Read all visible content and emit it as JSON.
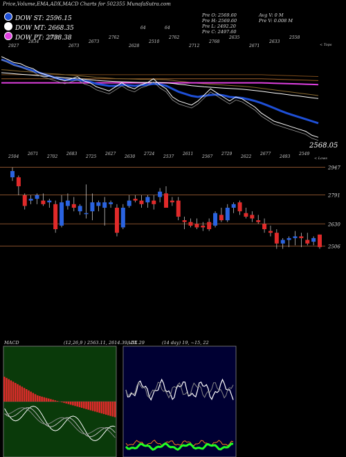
{
  "header": "Price,Volume,EMA,ADX,MACD Charts for 502355 MunafaSutra.com",
  "legend": [
    {
      "label": "DOW ST: 2596.15",
      "color": "#1e4fd6"
    },
    {
      "label": "DOW MT: 2668.35",
      "color": "#ffffff"
    },
    {
      "label": "DOW PT: 2738.38",
      "color": "#e040e0"
    }
  ],
  "stats": {
    "open": "Pre   O: 2569.60",
    "high": "Pre   H: 2569.60",
    "low": "Pre   L: 2492.20",
    "close": "Pre   C: 2497.60",
    "avgv": "Avg V: 0   M",
    "prev": "Pre   V: 0.008 M"
  },
  "labels": {
    "tops": "< Tops",
    "lows": "< Lows",
    "last_close": "2568.05",
    "num_a": "64",
    "num_b": "64"
  },
  "top_labels": [
    "2927",
    "2834",
    "2788",
    "2673",
    "2673",
    "2762",
    "2628",
    "2510",
    "2762",
    "2712",
    "2768",
    "2635",
    "2671",
    "2633",
    "2558"
  ],
  "bottom_labels": [
    "2504",
    "2671",
    "2702",
    "2683",
    "2725",
    "2627",
    "2630",
    "2724",
    "2537",
    "2611",
    "2567",
    "2729",
    "2622",
    "2677",
    "2493",
    "2549"
  ],
  "macd": {
    "title": "MACD",
    "params": "(12,26,9 ) 2563.11,  2614.39,  -51.29"
  },
  "adx": {
    "title": "ADX",
    "params": "(14  day) 19,  ~15,  22"
  },
  "chart_data": {
    "type": "candlestick",
    "price_axis_ticks": [
      2947,
      2791,
      2630,
      2506
    ],
    "candles": [
      {
        "o": 2890,
        "h": 2945,
        "l": 2870,
        "c": 2925
      },
      {
        "o": 2890,
        "h": 2900,
        "l": 2790,
        "c": 2840
      },
      {
        "o": 2790,
        "h": 2800,
        "l": 2710,
        "c": 2730
      },
      {
        "o": 2760,
        "h": 2790,
        "l": 2740,
        "c": 2770
      },
      {
        "o": 2770,
        "h": 2800,
        "l": 2740,
        "c": 2790
      },
      {
        "o": 2760,
        "h": 2800,
        "l": 2730,
        "c": 2740
      },
      {
        "o": 2750,
        "h": 2770,
        "l": 2720,
        "c": 2760
      },
      {
        "o": 2740,
        "h": 2760,
        "l": 2580,
        "c": 2600
      },
      {
        "o": 2620,
        "h": 2790,
        "l": 2610,
        "c": 2750
      },
      {
        "o": 2730,
        "h": 2800,
        "l": 2710,
        "c": 2760
      },
      {
        "o": 2740,
        "h": 2780,
        "l": 2700,
        "c": 2720
      },
      {
        "o": 2700,
        "h": 2740,
        "l": 2680,
        "c": 2730
      },
      {
        "o": 2690,
        "h": 2850,
        "l": 2660,
        "c": 2690
      },
      {
        "o": 2700,
        "h": 2800,
        "l": 2650,
        "c": 2750
      },
      {
        "o": 2730,
        "h": 2760,
        "l": 2700,
        "c": 2750
      },
      {
        "o": 2720,
        "h": 2780,
        "l": 2620,
        "c": 2750
      },
      {
        "o": 2740,
        "h": 2760,
        "l": 2720,
        "c": 2750
      },
      {
        "o": 2720,
        "h": 2740,
        "l": 2560,
        "c": 2580
      },
      {
        "o": 2610,
        "h": 2740,
        "l": 2600,
        "c": 2720
      },
      {
        "o": 2730,
        "h": 2790,
        "l": 2720,
        "c": 2760
      },
      {
        "o": 2770,
        "h": 2790,
        "l": 2750,
        "c": 2760
      },
      {
        "o": 2760,
        "h": 2790,
        "l": 2720,
        "c": 2740
      },
      {
        "o": 2750,
        "h": 2790,
        "l": 2720,
        "c": 2780
      },
      {
        "o": 2760,
        "h": 2790,
        "l": 2710,
        "c": 2740
      },
      {
        "o": 2780,
        "h": 2830,
        "l": 2750,
        "c": 2810
      },
      {
        "o": 2800,
        "h": 2840,
        "l": 2720,
        "c": 2720
      },
      {
        "o": 2760,
        "h": 2780,
        "l": 2730,
        "c": 2750
      },
      {
        "o": 2760,
        "h": 2780,
        "l": 2650,
        "c": 2670
      },
      {
        "o": 2650,
        "h": 2670,
        "l": 2600,
        "c": 2640
      },
      {
        "o": 2640,
        "h": 2660,
        "l": 2610,
        "c": 2620
      },
      {
        "o": 2630,
        "h": 2660,
        "l": 2600,
        "c": 2610
      },
      {
        "o": 2620,
        "h": 2640,
        "l": 2590,
        "c": 2610
      },
      {
        "o": 2640,
        "h": 2660,
        "l": 2590,
        "c": 2600
      },
      {
        "o": 2620,
        "h": 2700,
        "l": 2610,
        "c": 2690
      },
      {
        "o": 2680,
        "h": 2720,
        "l": 2640,
        "c": 2650
      },
      {
        "o": 2650,
        "h": 2740,
        "l": 2640,
        "c": 2720
      },
      {
        "o": 2720,
        "h": 2750,
        "l": 2690,
        "c": 2740
      },
      {
        "o": 2750,
        "h": 2760,
        "l": 2680,
        "c": 2700
      },
      {
        "o": 2690,
        "h": 2720,
        "l": 2660,
        "c": 2670
      },
      {
        "o": 2680,
        "h": 2700,
        "l": 2640,
        "c": 2660
      },
      {
        "o": 2650,
        "h": 2680,
        "l": 2630,
        "c": 2640
      },
      {
        "o": 2630,
        "h": 2660,
        "l": 2580,
        "c": 2600
      },
      {
        "o": 2590,
        "h": 2620,
        "l": 2560,
        "c": 2580
      },
      {
        "o": 2580,
        "h": 2600,
        "l": 2490,
        "c": 2520
      },
      {
        "o": 2520,
        "h": 2550,
        "l": 2490,
        "c": 2540
      },
      {
        "o": 2540,
        "h": 2560,
        "l": 2500,
        "c": 2550
      },
      {
        "o": 2550,
        "h": 2590,
        "l": 2510,
        "c": 2560
      },
      {
        "o": 2560,
        "h": 2580,
        "l": 2500,
        "c": 2550
      },
      {
        "o": 2540,
        "h": 2580,
        "l": 2510,
        "c": 2520
      },
      {
        "o": 2530,
        "h": 2560,
        "l": 2510,
        "c": 2550
      },
      {
        "o": 2570,
        "h": 2570,
        "l": 2490,
        "c": 2500
      }
    ],
    "price_line": [
      2920,
      2905,
      2890,
      2885,
      2870,
      2860,
      2840,
      2830,
      2820,
      2810,
      2800,
      2810,
      2820,
      2800,
      2790,
      2770,
      2760,
      2750,
      2770,
      2790,
      2770,
      2760,
      2780,
      2790,
      2810,
      2780,
      2760,
      2720,
      2700,
      2690,
      2680,
      2700,
      2730,
      2760,
      2740,
      2720,
      2700,
      2720,
      2710,
      2690,
      2670,
      2640,
      2620,
      2600,
      2590,
      2580,
      2570,
      2560,
      2550,
      2530,
      2520
    ],
    "ema_short": [
      2905,
      2895,
      2880,
      2870,
      2860,
      2850,
      2840,
      2830,
      2820,
      2810,
      2805,
      2805,
      2805,
      2800,
      2795,
      2785,
      2780,
      2775,
      2775,
      2780,
      2778,
      2775,
      2778,
      2780,
      2785,
      2782,
      2775,
      2760,
      2745,
      2735,
      2725,
      2720,
      2725,
      2730,
      2732,
      2728,
      2720,
      2718,
      2715,
      2708,
      2700,
      2690,
      2678,
      2665,
      2652,
      2640,
      2630,
      2620,
      2610,
      2600,
      2590
    ],
    "ema_mid": [
      2840,
      2838,
      2835,
      2832,
      2830,
      2828,
      2825,
      2822,
      2820,
      2818,
      2815,
      2813,
      2810,
      2808,
      2805,
      2802,
      2800,
      2798,
      2796,
      2795,
      2794,
      2793,
      2792,
      2792,
      2792,
      2791,
      2790,
      2787,
      2783,
      2780,
      2776,
      2773,
      2770,
      2768,
      2766,
      2764,
      2762,
      2760,
      2758,
      2755,
      2752,
      2748,
      2744,
      2740,
      2736,
      2732,
      2728,
      2724,
      2720,
      2716,
      2712
    ],
    "ema_long": [
      2790,
      2790,
      2790,
      2790,
      2790,
      2790,
      2790,
      2790,
      2790,
      2790,
      2790,
      2790,
      2790,
      2790,
      2790,
      2790,
      2790,
      2790,
      2790,
      2790,
      2790,
      2790,
      2790,
      2790,
      2790,
      2790,
      2790,
      2790,
      2790,
      2790,
      2790,
      2790,
      2790,
      2790,
      2790,
      2790,
      2790,
      2790,
      2790,
      2790,
      2790,
      2790,
      2789,
      2788,
      2787,
      2786,
      2785,
      2784,
      2783,
      2782,
      2781
    ],
    "macd_hist": [
      40,
      38,
      36,
      34,
      32,
      30,
      28,
      26,
      24,
      22,
      20,
      18,
      16,
      14,
      12,
      10,
      9,
      8,
      7,
      6,
      5,
      4,
      3,
      2,
      1,
      0,
      -1,
      -2,
      -3,
      -4,
      -5,
      -6,
      -7,
      -8,
      -9,
      -10,
      -11,
      -12,
      -13,
      -14,
      -15,
      -16,
      -17,
      -18,
      -19,
      -20,
      -21,
      -22,
      -23,
      -24,
      -25
    ]
  }
}
